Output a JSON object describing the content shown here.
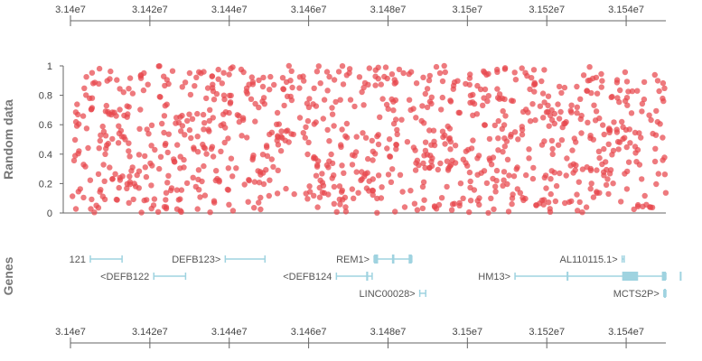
{
  "chart_data": {
    "type": "scatter",
    "x_axis": {
      "range": [
        31400000,
        31550000
      ],
      "ticks": [
        {
          "value": 31400000,
          "label": "3.14e7"
        },
        {
          "value": 31420000,
          "label": "3.142e7"
        },
        {
          "value": 31440000,
          "label": "3.144e7"
        },
        {
          "value": 31460000,
          "label": "3.146e7"
        },
        {
          "value": 31480000,
          "label": "3.148e7"
        },
        {
          "value": 31500000,
          "label": "3.15e7"
        },
        {
          "value": 31520000,
          "label": "3.152e7"
        },
        {
          "value": 31540000,
          "label": "3.154e7"
        }
      ]
    },
    "scatter_panel": {
      "ylabel": "Random data",
      "ylim": [
        0,
        1
      ],
      "yticks": [
        {
          "value": 0,
          "label": "0"
        },
        {
          "value": 0.2,
          "label": "0.2"
        },
        {
          "value": 0.4,
          "label": "0.4"
        },
        {
          "value": 0.6,
          "label": "0.6"
        },
        {
          "value": 0.8,
          "label": "0.8"
        },
        {
          "value": 1,
          "label": "1"
        }
      ],
      "series": [
        {
          "name": "Random data",
          "color": "#e8474c",
          "n_points": 1000,
          "distribution": "uniform random in [0,1]",
          "seed": 20240517
        }
      ]
    },
    "genes_panel": {
      "ylabel": "Genes",
      "color": "#9fd3e0",
      "genes": [
        {
          "name": "121",
          "label": "121",
          "start": 31405000,
          "end": 31413000,
          "row": 0,
          "exons": []
        },
        {
          "name": "DEFB122",
          "label": "<DEFB122",
          "start": 31421000,
          "end": 31429000,
          "row": 1,
          "exons": []
        },
        {
          "name": "DEFB123",
          "label": "DEFB123>",
          "start": 31439000,
          "end": 31449000,
          "row": 0,
          "exons": []
        },
        {
          "name": "DEFB124",
          "label": "<DEFB124",
          "start": 31467000,
          "end": 31476000,
          "row": 1,
          "exons": [
            [
              31474500,
              31475000
            ]
          ]
        },
        {
          "name": "REM1",
          "label": "REM1>",
          "start": 31476500,
          "end": 31486000,
          "row": 0,
          "exons": [
            [
              31476500,
              31477500
            ],
            [
              31481000,
              31481600
            ],
            [
              31485200,
              31486000
            ]
          ]
        },
        {
          "name": "LINC00028",
          "label": "LINC00028>",
          "start": 31488000,
          "end": 31489500,
          "row": 2,
          "exons": []
        },
        {
          "name": "AL110115.1",
          "label": "AL110115.1>",
          "start": 31539000,
          "end": 31539500,
          "row": 0,
          "exons": []
        },
        {
          "name": "HM13",
          "label": "HM13>",
          "start": 31512000,
          "end": 31558000,
          "row": 1,
          "exons": [
            [
              31525000,
              31525400
            ],
            [
              31539000,
              31543000
            ],
            [
              31549000,
              31551000
            ],
            [
              31553500,
              31554500
            ]
          ]
        },
        {
          "name": "MCTS2P",
          "label": "MCTS2P>",
          "start": 31549500,
          "end": 31550300,
          "row": 2,
          "exons": [
            [
              31549500,
              31550300
            ]
          ]
        }
      ]
    }
  }
}
